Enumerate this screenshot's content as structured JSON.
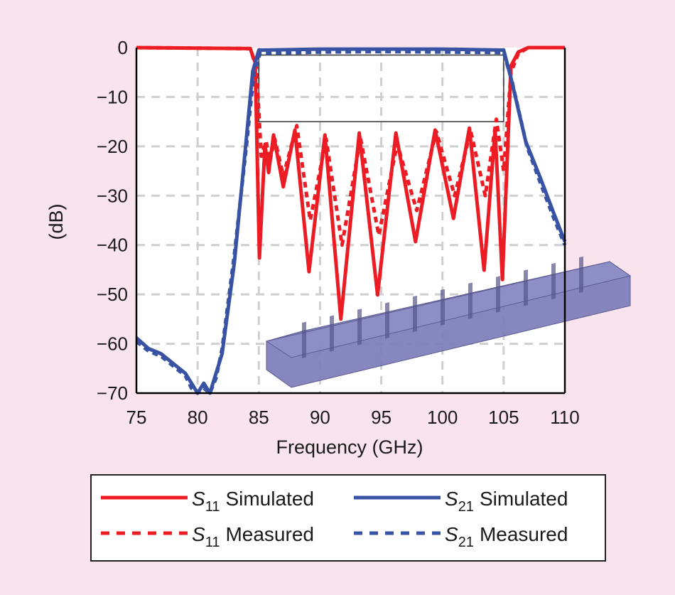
{
  "chart_data": {
    "type": "line",
    "title": "",
    "xlabel": "Frequency (GHz)",
    "ylabel": "(dB)",
    "xlim": [
      75,
      110
    ],
    "ylim": [
      -70,
      0
    ],
    "xticks": [
      75,
      80,
      85,
      90,
      95,
      100,
      105,
      110
    ],
    "yticks": [
      0,
      -10,
      -20,
      -30,
      -40,
      -50,
      -60,
      -70
    ],
    "xtick_labels": [
      "75",
      "80",
      "85",
      "90",
      "95",
      "100",
      "105",
      "110"
    ],
    "ytick_labels": [
      "0",
      "−10",
      "−20",
      "−30",
      "−40",
      "−50",
      "−60",
      "−70"
    ],
    "grid": true,
    "legend_placement": "bottom",
    "spec_mask": {
      "x": [
        85,
        105
      ],
      "y": [
        -1.5,
        -15
      ]
    },
    "series": [
      {
        "name": "S11 Simulated",
        "sub": "11",
        "label": "Simulated",
        "color": "#ec1c24",
        "dashed": false,
        "x": [
          75,
          84.3,
          84.7,
          85.05,
          85.5,
          85.8,
          86.2,
          87.0,
          87.95,
          89.1,
          90.4,
          91.7,
          93.2,
          94.7,
          96.2,
          97.8,
          99.4,
          100.9,
          102.2,
          103.4,
          104.3,
          104.9,
          105.6,
          106.2,
          107,
          110
        ],
        "y": [
          0,
          -0.2,
          -3,
          -42.6,
          -19.6,
          -25.3,
          -17.7,
          -28.2,
          -16.7,
          -45.4,
          -17.7,
          -55,
          -17.3,
          -50.1,
          -17.3,
          -39.3,
          -16.7,
          -34.6,
          -16.3,
          -45.1,
          -16.7,
          -47,
          -3.7,
          -0.9,
          0,
          0
        ]
      },
      {
        "name": "S11 Measured",
        "sub": "11",
        "label": "Measured",
        "color": "#ec1c24",
        "dashed": true,
        "x": [
          75,
          84.3,
          84.8,
          85.2,
          85.6,
          85.9,
          86.3,
          87.0,
          88.1,
          89.2,
          90.5,
          91.8,
          93.3,
          94.8,
          96.3,
          97.9,
          99.5,
          101.0,
          102.3,
          103.5,
          104.4,
          105.0,
          105.6,
          106.2,
          107,
          110
        ],
        "y": [
          0,
          -0.2,
          -4,
          -22,
          -19.0,
          -23,
          -18.5,
          -26,
          -15.8,
          -35,
          -18.5,
          -40,
          -18.3,
          -38,
          -19.5,
          -33,
          -17.0,
          -30,
          -16.8,
          -30,
          -14.5,
          -25,
          -5,
          -1.2,
          0,
          0
        ]
      },
      {
        "name": "S21 Simulated",
        "sub": "21",
        "label": "Simulated",
        "color": "#3953a4",
        "dashed": false,
        "x": [
          75,
          76,
          77,
          78,
          79,
          79.5,
          80,
          80.5,
          81,
          81.5,
          82,
          83,
          83.9,
          84.5,
          85,
          90,
          95,
          100,
          105,
          105.6,
          106.8,
          108,
          109.1,
          110
        ],
        "y": [
          -58.8,
          -61,
          -62,
          -64,
          -66,
          -68,
          -70,
          -68,
          -70,
          -66,
          -62,
          -43.6,
          -20.6,
          -4.8,
          -0.5,
          -0.3,
          -0.3,
          -0.3,
          -0.5,
          -6.2,
          -19,
          -26.4,
          -33.6,
          -39.3
        ]
      },
      {
        "name": "S21 Measured",
        "sub": "21",
        "label": "Measured",
        "color": "#3953a4",
        "dashed": true,
        "x": [
          75,
          76,
          77,
          78,
          79,
          79.5,
          80,
          80.5,
          81,
          81.5,
          82,
          83,
          84,
          84.6,
          85.1,
          90,
          95,
          100,
          105,
          105.7,
          106.9,
          108,
          109.1,
          110
        ],
        "y": [
          -59.5,
          -61.5,
          -62.5,
          -64.5,
          -66.5,
          -69,
          -70,
          -69,
          -70,
          -67,
          -61,
          -42,
          -19.5,
          -5,
          -1.2,
          -0.9,
          -0.8,
          -0.9,
          -1.0,
          -7,
          -20,
          -27.4,
          -34.6,
          -40
        ]
      }
    ]
  }
}
